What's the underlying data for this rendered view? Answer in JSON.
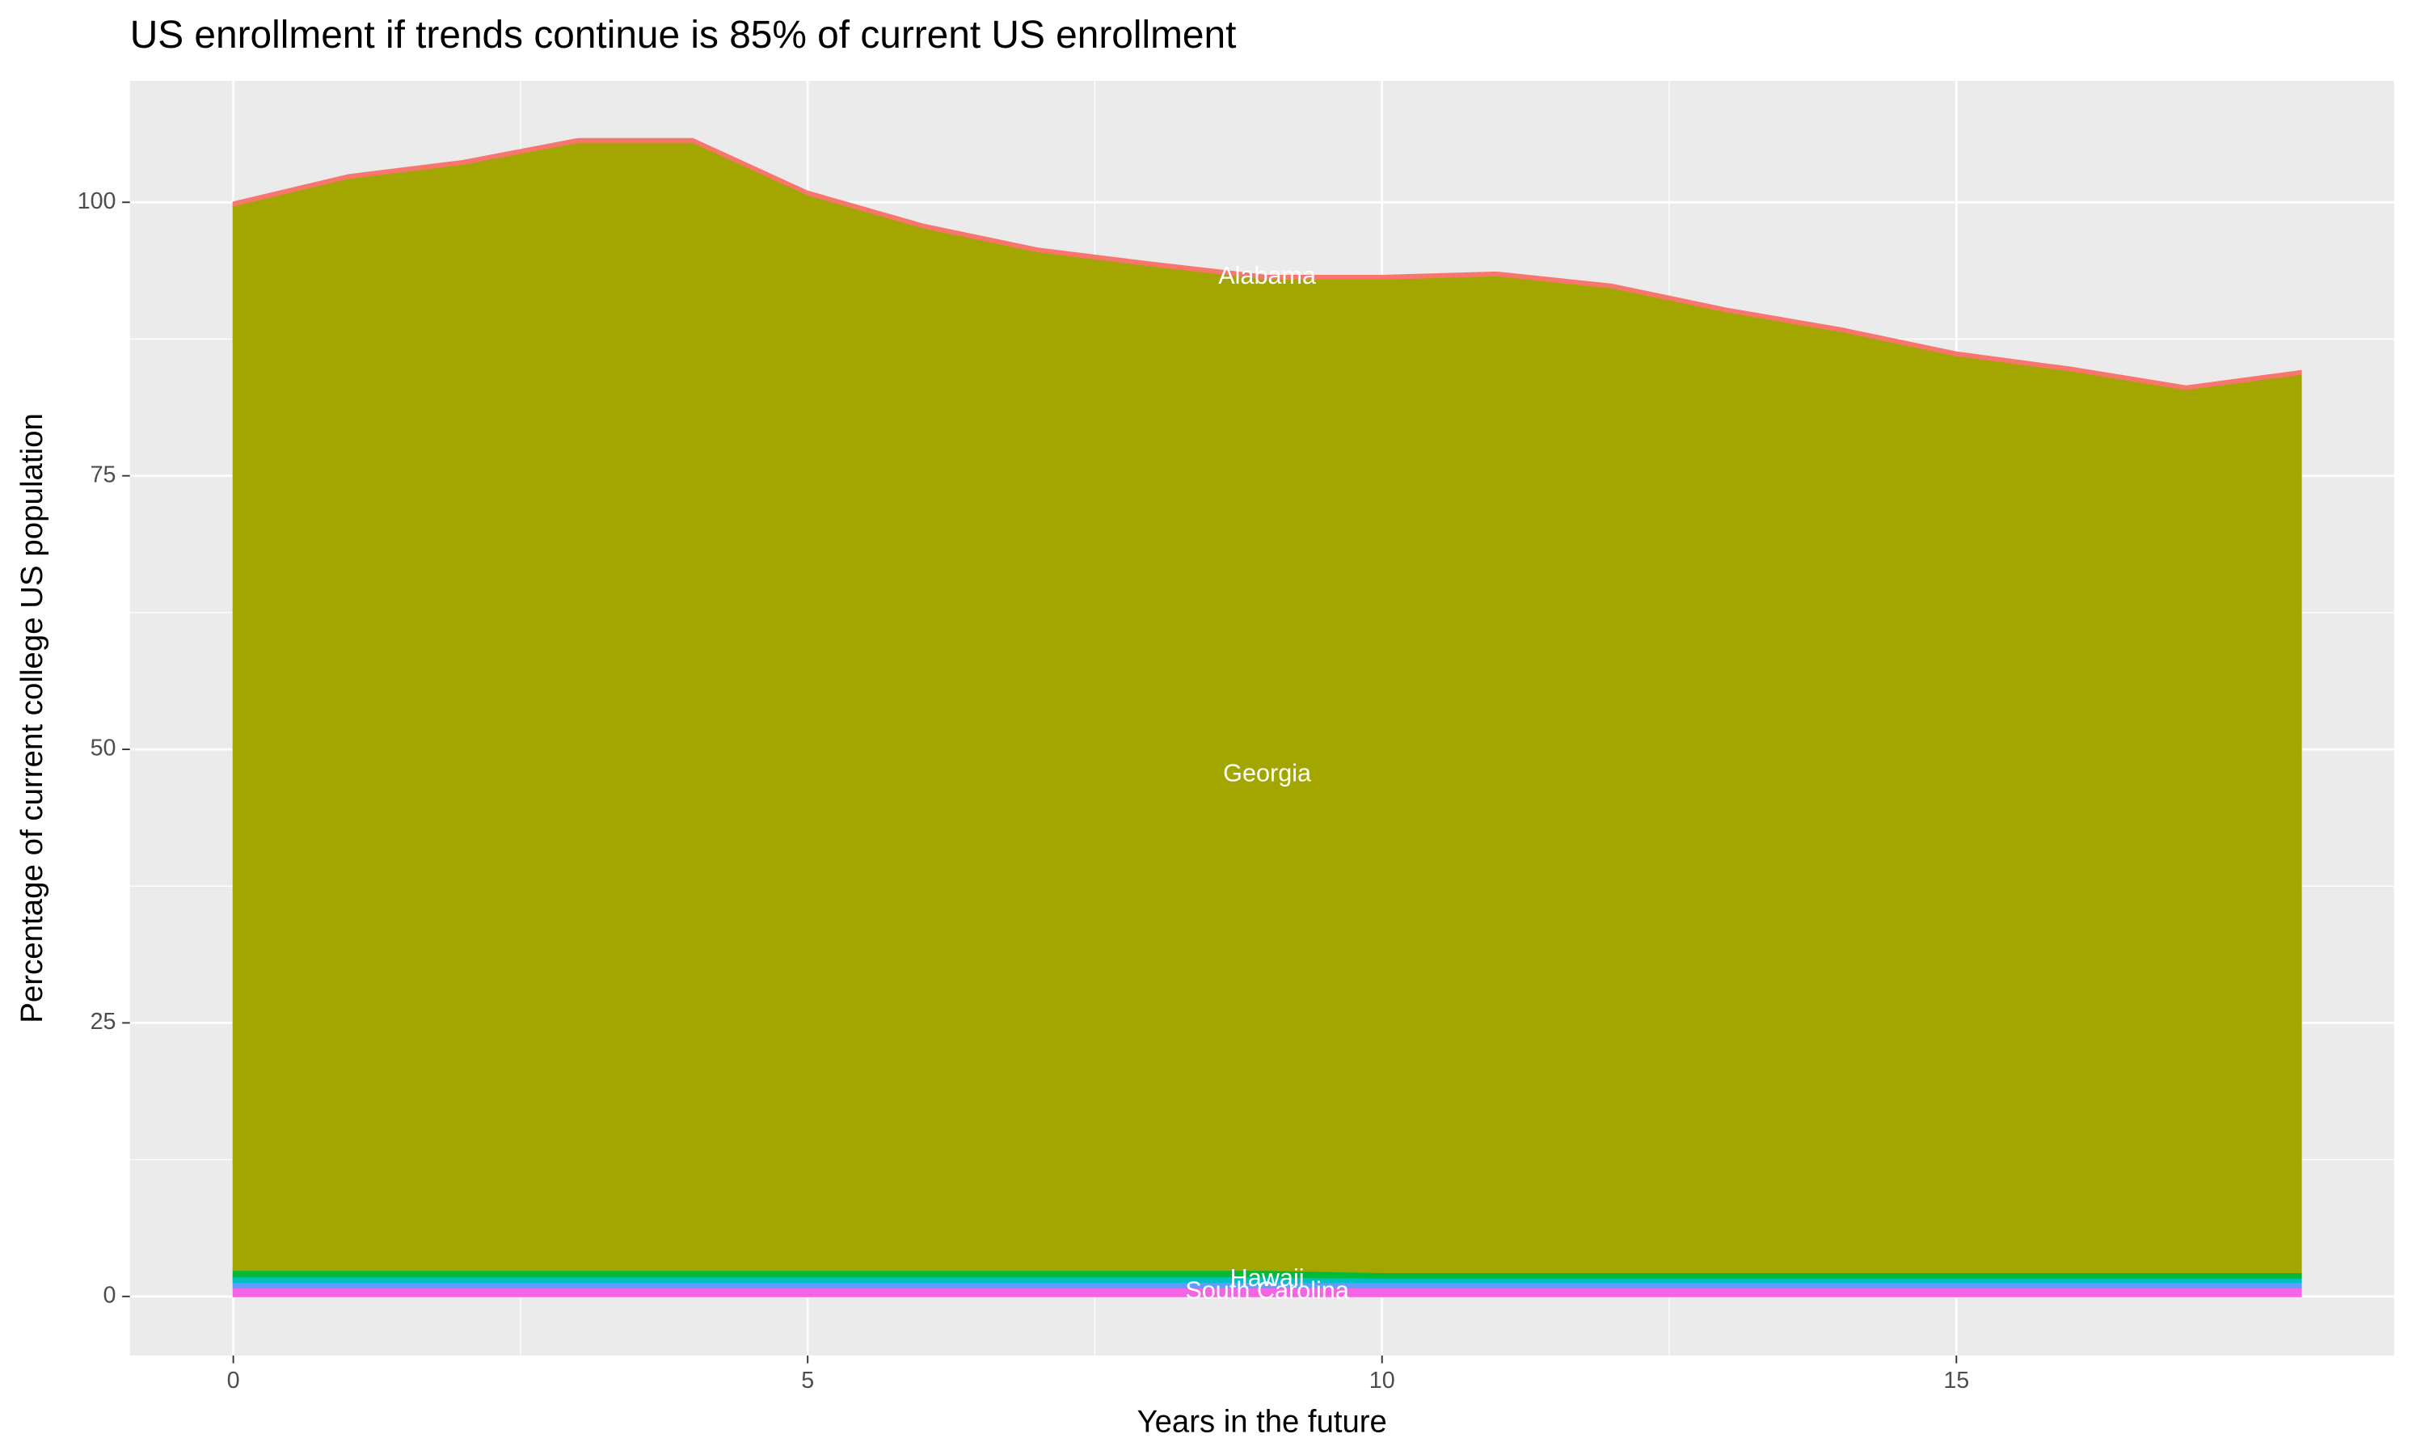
{
  "chart_data": {
    "type": "stacked_area",
    "title": "US enrollment if trends continue is 85% of current US enrollment",
    "x_label": "Years in the future",
    "y_label": "Percentage of current college US population",
    "x": [
      0,
      1,
      2,
      3,
      4,
      5,
      6,
      7,
      8,
      9,
      10,
      11,
      12,
      13,
      14,
      15,
      16,
      17,
      18
    ],
    "series": [
      {
        "name": "South Carolina",
        "color": "#f564e3",
        "values": [
          0.8,
          0.8,
          0.8,
          0.8,
          0.8,
          0.8,
          0.8,
          0.8,
          0.8,
          0.8,
          0.8,
          0.8,
          0.8,
          0.8,
          0.8,
          0.8,
          0.8,
          0.8,
          0.8
        ]
      },
      {
        "color": "#619cff",
        "values": [
          0.5,
          0.5,
          0.5,
          0.5,
          0.5,
          0.5,
          0.5,
          0.5,
          0.5,
          0.5,
          0.5,
          0.5,
          0.5,
          0.5,
          0.5,
          0.5,
          0.5,
          0.5,
          0.5
        ]
      },
      {
        "name": "Hawaii",
        "color": "#00bfc4",
        "values": [
          0.5,
          0.5,
          0.5,
          0.5,
          0.5,
          0.5,
          0.5,
          0.5,
          0.5,
          0.5,
          0.4,
          0.4,
          0.4,
          0.4,
          0.4,
          0.4,
          0.4,
          0.4,
          0.4
        ]
      },
      {
        "color": "#00ba38",
        "values": [
          0.6,
          0.6,
          0.6,
          0.6,
          0.6,
          0.6,
          0.6,
          0.6,
          0.6,
          0.6,
          0.5,
          0.5,
          0.5,
          0.5,
          0.5,
          0.5,
          0.5,
          0.5,
          0.5
        ]
      },
      {
        "name": "Georgia",
        "color": "#a3a500",
        "values": [
          97.3,
          99.8,
          101.1,
          103.1,
          103.1,
          98.3,
          95.3,
          93.1,
          91.8,
          90.6,
          90.8,
          91.1,
          90.0,
          87.8,
          86.0,
          83.8,
          82.4,
          80.7,
          82.1
        ]
      },
      {
        "name": "Alabama",
        "color": "#f8766d",
        "values": [
          0.3,
          0.3,
          0.3,
          0.3,
          0.3,
          0.3,
          0.3,
          0.3,
          0.3,
          0.3,
          0.3,
          0.3,
          0.3,
          0.3,
          0.3,
          0.3,
          0.3,
          0.3,
          0.3
        ]
      }
    ],
    "label_x": 9,
    "xlim": [
      -0.9,
      18.81
    ],
    "ylim": [
      -5.4,
      111.1
    ],
    "xticks": [
      0,
      5,
      10,
      15
    ],
    "yticks": [
      0,
      25,
      50,
      75,
      100
    ],
    "grid": true,
    "minor_grid": true
  }
}
